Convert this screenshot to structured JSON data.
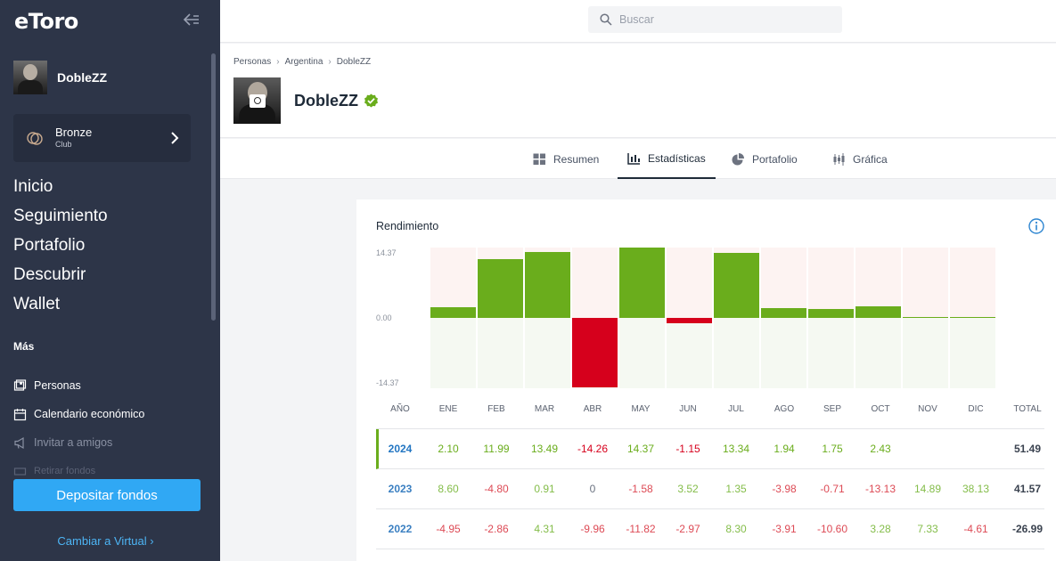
{
  "sidebar": {
    "logo": "eToro",
    "username": "DobleZZ",
    "club": {
      "title": "Bronze",
      "subtitle": "Club"
    },
    "nav": [
      "Inicio",
      "Seguimiento",
      "Portafolio",
      "Descubrir",
      "Wallet"
    ],
    "more_label": "Más",
    "sub_nav": [
      {
        "label": "Personas",
        "icon": "people-icon"
      },
      {
        "label": "Calendario económico",
        "icon": "calendar-icon"
      },
      {
        "label": "Invitar a amigos",
        "icon": "megaphone-icon"
      },
      {
        "label": "Retirar fondos",
        "icon": "withdraw-icon"
      }
    ],
    "deposit_label": "Depositar fondos",
    "virtual_label": "Cambiar a Virtual ›"
  },
  "search": {
    "placeholder": "Buscar"
  },
  "breadcrumb": [
    "Personas",
    "Argentina",
    "DobleZZ"
  ],
  "user": {
    "name": "DobleZZ"
  },
  "tabs": [
    {
      "label": "Resumen",
      "icon": "grid-icon"
    },
    {
      "label": "Estadísticas",
      "icon": "bar-chart-icon",
      "active": true
    },
    {
      "label": "Portafolio",
      "icon": "pie-chart-icon"
    },
    {
      "label": "Gráfica",
      "icon": "candlestick-icon"
    }
  ],
  "performance": {
    "title": "Rendimiento",
    "y_ticks": [
      "14.37",
      "0.00",
      "-14.37"
    ],
    "headers": [
      "AÑO",
      "ENE",
      "FEB",
      "MAR",
      "ABR",
      "MAY",
      "JUN",
      "JUL",
      "AGO",
      "SEP",
      "OCT",
      "NOV",
      "DIC",
      "TOTAL"
    ],
    "rows": [
      {
        "year": "2024",
        "values": [
          "2.10",
          "11.99",
          "13.49",
          "-14.26",
          "14.37",
          "-1.15",
          "13.34",
          "1.94",
          "1.75",
          "2.43",
          "",
          ""
        ],
        "total": "51.49"
      },
      {
        "year": "2023",
        "values": [
          "8.60",
          "-4.80",
          "0.91",
          "0",
          "-1.58",
          "3.52",
          "1.35",
          "-3.98",
          "-0.71",
          "-13.13",
          "14.89",
          "38.13"
        ],
        "total": "41.57"
      },
      {
        "year": "2022",
        "values": [
          "-4.95",
          "-2.86",
          "4.31",
          "-9.96",
          "-11.82",
          "-2.97",
          "8.30",
          "-3.91",
          "-10.60",
          "3.28",
          "7.33",
          "-4.61"
        ],
        "total": "-26.99"
      }
    ]
  },
  "chart_data": {
    "type": "bar",
    "title": "Rendimiento",
    "categories": [
      "ENE",
      "FEB",
      "MAR",
      "ABR",
      "MAY",
      "JUN",
      "JUL",
      "AGO",
      "SEP",
      "OCT",
      "NOV",
      "DIC"
    ],
    "values": [
      2.1,
      11.99,
      13.49,
      -14.26,
      14.37,
      -1.15,
      13.34,
      1.94,
      1.75,
      2.43,
      0.2,
      0.2
    ],
    "ylim": [
      -14.37,
      14.37
    ],
    "positive_color": "#6aad1c",
    "negative_color": "#d6001c"
  }
}
